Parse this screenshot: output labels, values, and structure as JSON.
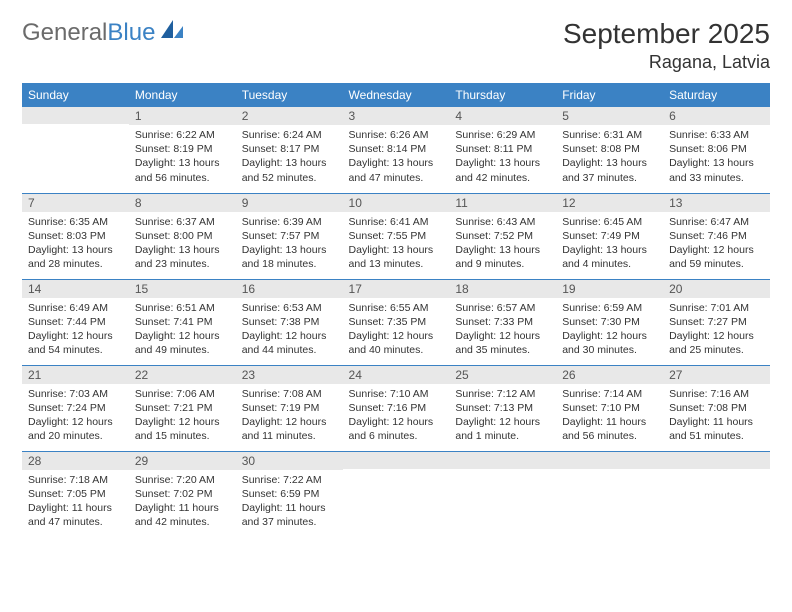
{
  "logo": {
    "text1": "General",
    "text2": "Blue"
  },
  "title": "September 2025",
  "location": "Ragana, Latvia",
  "colors": {
    "header_bg": "#3b82c4",
    "header_text": "#ffffff",
    "daynum_bg": "#e8e8e8",
    "daynum_text": "#555555",
    "border": "#3b82c4",
    "body_text": "#333333",
    "logo_gray": "#6b6b6b",
    "logo_blue": "#3b82c4"
  },
  "dayNames": [
    "Sunday",
    "Monday",
    "Tuesday",
    "Wednesday",
    "Thursday",
    "Friday",
    "Saturday"
  ],
  "weeks": [
    [
      {
        "n": "",
        "sr": "",
        "ss": "",
        "dl": ""
      },
      {
        "n": "1",
        "sr": "Sunrise: 6:22 AM",
        "ss": "Sunset: 8:19 PM",
        "dl": "Daylight: 13 hours and 56 minutes."
      },
      {
        "n": "2",
        "sr": "Sunrise: 6:24 AM",
        "ss": "Sunset: 8:17 PM",
        "dl": "Daylight: 13 hours and 52 minutes."
      },
      {
        "n": "3",
        "sr": "Sunrise: 6:26 AM",
        "ss": "Sunset: 8:14 PM",
        "dl": "Daylight: 13 hours and 47 minutes."
      },
      {
        "n": "4",
        "sr": "Sunrise: 6:29 AM",
        "ss": "Sunset: 8:11 PM",
        "dl": "Daylight: 13 hours and 42 minutes."
      },
      {
        "n": "5",
        "sr": "Sunrise: 6:31 AM",
        "ss": "Sunset: 8:08 PM",
        "dl": "Daylight: 13 hours and 37 minutes."
      },
      {
        "n": "6",
        "sr": "Sunrise: 6:33 AM",
        "ss": "Sunset: 8:06 PM",
        "dl": "Daylight: 13 hours and 33 minutes."
      }
    ],
    [
      {
        "n": "7",
        "sr": "Sunrise: 6:35 AM",
        "ss": "Sunset: 8:03 PM",
        "dl": "Daylight: 13 hours and 28 minutes."
      },
      {
        "n": "8",
        "sr": "Sunrise: 6:37 AM",
        "ss": "Sunset: 8:00 PM",
        "dl": "Daylight: 13 hours and 23 minutes."
      },
      {
        "n": "9",
        "sr": "Sunrise: 6:39 AM",
        "ss": "Sunset: 7:57 PM",
        "dl": "Daylight: 13 hours and 18 minutes."
      },
      {
        "n": "10",
        "sr": "Sunrise: 6:41 AM",
        "ss": "Sunset: 7:55 PM",
        "dl": "Daylight: 13 hours and 13 minutes."
      },
      {
        "n": "11",
        "sr": "Sunrise: 6:43 AM",
        "ss": "Sunset: 7:52 PM",
        "dl": "Daylight: 13 hours and 9 minutes."
      },
      {
        "n": "12",
        "sr": "Sunrise: 6:45 AM",
        "ss": "Sunset: 7:49 PM",
        "dl": "Daylight: 13 hours and 4 minutes."
      },
      {
        "n": "13",
        "sr": "Sunrise: 6:47 AM",
        "ss": "Sunset: 7:46 PM",
        "dl": "Daylight: 12 hours and 59 minutes."
      }
    ],
    [
      {
        "n": "14",
        "sr": "Sunrise: 6:49 AM",
        "ss": "Sunset: 7:44 PM",
        "dl": "Daylight: 12 hours and 54 minutes."
      },
      {
        "n": "15",
        "sr": "Sunrise: 6:51 AM",
        "ss": "Sunset: 7:41 PM",
        "dl": "Daylight: 12 hours and 49 minutes."
      },
      {
        "n": "16",
        "sr": "Sunrise: 6:53 AM",
        "ss": "Sunset: 7:38 PM",
        "dl": "Daylight: 12 hours and 44 minutes."
      },
      {
        "n": "17",
        "sr": "Sunrise: 6:55 AM",
        "ss": "Sunset: 7:35 PM",
        "dl": "Daylight: 12 hours and 40 minutes."
      },
      {
        "n": "18",
        "sr": "Sunrise: 6:57 AM",
        "ss": "Sunset: 7:33 PM",
        "dl": "Daylight: 12 hours and 35 minutes."
      },
      {
        "n": "19",
        "sr": "Sunrise: 6:59 AM",
        "ss": "Sunset: 7:30 PM",
        "dl": "Daylight: 12 hours and 30 minutes."
      },
      {
        "n": "20",
        "sr": "Sunrise: 7:01 AM",
        "ss": "Sunset: 7:27 PM",
        "dl": "Daylight: 12 hours and 25 minutes."
      }
    ],
    [
      {
        "n": "21",
        "sr": "Sunrise: 7:03 AM",
        "ss": "Sunset: 7:24 PM",
        "dl": "Daylight: 12 hours and 20 minutes."
      },
      {
        "n": "22",
        "sr": "Sunrise: 7:06 AM",
        "ss": "Sunset: 7:21 PM",
        "dl": "Daylight: 12 hours and 15 minutes."
      },
      {
        "n": "23",
        "sr": "Sunrise: 7:08 AM",
        "ss": "Sunset: 7:19 PM",
        "dl": "Daylight: 12 hours and 11 minutes."
      },
      {
        "n": "24",
        "sr": "Sunrise: 7:10 AM",
        "ss": "Sunset: 7:16 PM",
        "dl": "Daylight: 12 hours and 6 minutes."
      },
      {
        "n": "25",
        "sr": "Sunrise: 7:12 AM",
        "ss": "Sunset: 7:13 PM",
        "dl": "Daylight: 12 hours and 1 minute."
      },
      {
        "n": "26",
        "sr": "Sunrise: 7:14 AM",
        "ss": "Sunset: 7:10 PM",
        "dl": "Daylight: 11 hours and 56 minutes."
      },
      {
        "n": "27",
        "sr": "Sunrise: 7:16 AM",
        "ss": "Sunset: 7:08 PM",
        "dl": "Daylight: 11 hours and 51 minutes."
      }
    ],
    [
      {
        "n": "28",
        "sr": "Sunrise: 7:18 AM",
        "ss": "Sunset: 7:05 PM",
        "dl": "Daylight: 11 hours and 47 minutes."
      },
      {
        "n": "29",
        "sr": "Sunrise: 7:20 AM",
        "ss": "Sunset: 7:02 PM",
        "dl": "Daylight: 11 hours and 42 minutes."
      },
      {
        "n": "30",
        "sr": "Sunrise: 7:22 AM",
        "ss": "Sunset: 6:59 PM",
        "dl": "Daylight: 11 hours and 37 minutes."
      },
      {
        "n": "",
        "sr": "",
        "ss": "",
        "dl": ""
      },
      {
        "n": "",
        "sr": "",
        "ss": "",
        "dl": ""
      },
      {
        "n": "",
        "sr": "",
        "ss": "",
        "dl": ""
      },
      {
        "n": "",
        "sr": "",
        "ss": "",
        "dl": ""
      }
    ]
  ]
}
